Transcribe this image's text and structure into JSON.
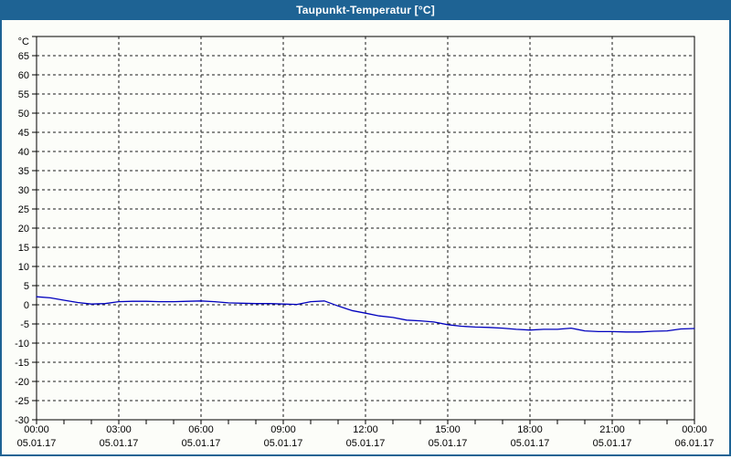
{
  "window": {
    "title": "Taupunkt-Temperatur [°C]"
  },
  "colors": {
    "titlebar_bg": "#1E6394",
    "titlebar_text": "#FFFFFF",
    "window_border": "#1E6394",
    "chart_bg": "#FCFDF9",
    "axis_color": "#000000",
    "grid_color": "#1A1A1A",
    "line_color": "#0000BE"
  },
  "chart_data": {
    "type": "line",
    "title": "Taupunkt-Temperatur [°C]",
    "ylabel": "°C",
    "xlabel": "",
    "ylim": [
      -30,
      70
    ],
    "y_tick_step": 5,
    "grid": "dashed",
    "legend": "none",
    "y_ticks": [
      {
        "value": 70,
        "label": "°C",
        "is_unit": true
      },
      {
        "value": 65,
        "label": "65"
      },
      {
        "value": 60,
        "label": "60"
      },
      {
        "value": 55,
        "label": "55"
      },
      {
        "value": 50,
        "label": "50"
      },
      {
        "value": 45,
        "label": "45"
      },
      {
        "value": 40,
        "label": "40"
      },
      {
        "value": 35,
        "label": "35"
      },
      {
        "value": 30,
        "label": "30"
      },
      {
        "value": 25,
        "label": "25"
      },
      {
        "value": 20,
        "label": "20"
      },
      {
        "value": 15,
        "label": "15"
      },
      {
        "value": 10,
        "label": "10"
      },
      {
        "value": 5,
        "label": "5"
      },
      {
        "value": 0,
        "label": "0"
      },
      {
        "value": -5,
        "label": "-5"
      },
      {
        "value": -10,
        "label": "-10"
      },
      {
        "value": -15,
        "label": "-15"
      },
      {
        "value": -20,
        "label": "-20"
      },
      {
        "value": -25,
        "label": "-25"
      },
      {
        "value": -30,
        "label": "-30"
      }
    ],
    "x_range_hours": [
      0,
      24
    ],
    "x_minor_tick_hours": 1,
    "x_major_ticks": [
      {
        "hour": 0,
        "time": "00:00",
        "date": "05.01.17"
      },
      {
        "hour": 3,
        "time": "03:00",
        "date": "05.01.17"
      },
      {
        "hour": 6,
        "time": "06:00",
        "date": "05.01.17"
      },
      {
        "hour": 9,
        "time": "09:00",
        "date": "05.01.17"
      },
      {
        "hour": 12,
        "time": "12:00",
        "date": "05.01.17"
      },
      {
        "hour": 15,
        "time": "15:00",
        "date": "05.01.17"
      },
      {
        "hour": 18,
        "time": "18:00",
        "date": "05.01.17"
      },
      {
        "hour": 21,
        "time": "21:00",
        "date": "05.01.17"
      },
      {
        "hour": 24,
        "time": "00:00",
        "date": "06.01.17"
      }
    ],
    "series": [
      {
        "name": "Taupunkt-Temperatur",
        "color": "#0000BE",
        "x_hours": [
          0,
          0.5,
          1,
          1.5,
          2,
          2.5,
          3,
          3.5,
          4,
          4.5,
          5,
          5.5,
          6,
          6.5,
          7,
          7.5,
          8,
          8.5,
          9,
          9.5,
          10,
          10.5,
          11,
          11.5,
          12,
          12.5,
          13,
          13.5,
          14,
          14.5,
          15,
          15.5,
          16,
          16.5,
          17,
          17.5,
          18,
          18.5,
          19,
          19.5,
          20,
          20.5,
          21,
          21.5,
          22,
          22.5,
          23,
          23.5,
          24
        ],
        "values": [
          2.1,
          1.8,
          1.2,
          0.6,
          0.2,
          0.3,
          0.8,
          0.9,
          0.9,
          0.8,
          0.8,
          0.9,
          1.0,
          0.8,
          0.5,
          0.4,
          0.3,
          0.3,
          0.2,
          0.1,
          0.8,
          1.0,
          -0.3,
          -1.5,
          -2.2,
          -2.9,
          -3.3,
          -4.0,
          -4.2,
          -4.5,
          -5.2,
          -5.6,
          -5.8,
          -5.9,
          -6.1,
          -6.4,
          -6.6,
          -6.4,
          -6.4,
          -6.1,
          -6.8,
          -7.0,
          -7.0,
          -7.1,
          -7.1,
          -6.9,
          -6.8,
          -6.3,
          -6.2
        ]
      }
    ]
  }
}
